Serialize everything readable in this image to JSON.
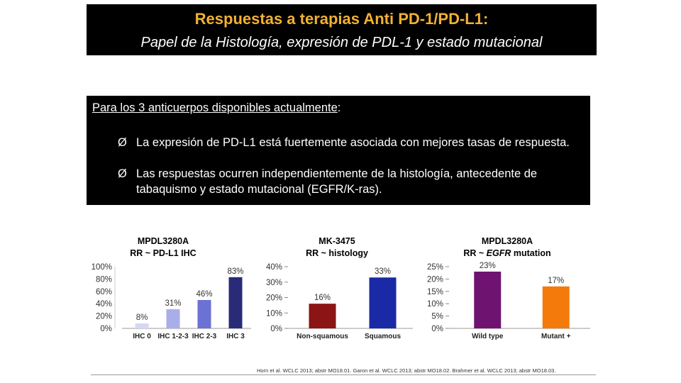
{
  "slide": {
    "title": "Respuestas a terapias Anti PD-1/PD-L1:",
    "subtitle": "Papel de la Histología, expresión de PDL-1 y estado mutacional",
    "box_heading": "Para los 3 anticuerpos disponibles actualmente",
    "box_heading_colon": ":",
    "bullet_glyph": "Ø",
    "bullets": [
      "La expresión de PD-L1 está fuertemente asociada con mejores tasas de respuesta.",
      "Las respuestas ocurren independientemente de la histología, antecedente de tabaquismo y estado mutacional (EGFR/K-ras)."
    ],
    "reference": "Horn et al. WCLC 2013; abstr MO18.01. Garon et al. WCLC 2013; abstr MO18.02. Brahmer et al. WCLC 2013; abstr MO18.03."
  },
  "colors": {
    "title_accent": "#f2b134"
  },
  "chart_data": [
    {
      "type": "bar",
      "title_line1": "MPDL3280A",
      "title_line2": "RR ~ PD-L1 IHC",
      "categories": [
        "IHC 0",
        "IHC 1-2-3",
        "IHC 2-3",
        "IHC 3"
      ],
      "values": [
        8,
        31,
        46,
        83
      ],
      "value_labels": [
        "8%",
        "31%",
        "46%",
        "83%"
      ],
      "ylim": [
        0,
        100
      ],
      "yticks": [
        0,
        20,
        40,
        60,
        80,
        100
      ],
      "ytick_labels": [
        "0%",
        "20%",
        "40%",
        "60%",
        "80%",
        "100%"
      ],
      "colors": [
        "#d5d8f2",
        "#a9aeea",
        "#6c71d4",
        "#2a2b78"
      ]
    },
    {
      "type": "bar",
      "title_line1": "MK-3475",
      "title_line2": "RR ~ histology",
      "categories": [
        "Non-squamous",
        "Squamous"
      ],
      "values": [
        16,
        33
      ],
      "value_labels": [
        "16%",
        "33%"
      ],
      "ylim": [
        0,
        40
      ],
      "yticks": [
        0,
        10,
        20,
        30,
        40
      ],
      "ytick_labels": [
        "0%",
        "10%",
        "20%",
        "30%",
        "40%"
      ],
      "colors": [
        "#8b1414",
        "#1a2aa6"
      ]
    },
    {
      "type": "bar",
      "title_line1": "MPDL3280A",
      "title_line2_prefix": "RR ~ ",
      "title_line2_italic": "EGFR",
      "title_line2_suffix": " mutation",
      "categories": [
        "Wild type",
        "Mutant +"
      ],
      "values": [
        23,
        17
      ],
      "value_labels": [
        "23%",
        "17%"
      ],
      "ylim": [
        0,
        25
      ],
      "yticks": [
        0,
        5,
        10,
        15,
        20,
        25
      ],
      "ytick_labels": [
        "0%",
        "5%",
        "10%",
        "15%",
        "20%",
        "25%"
      ],
      "colors": [
        "#6e1470",
        "#f47a0b"
      ]
    }
  ]
}
